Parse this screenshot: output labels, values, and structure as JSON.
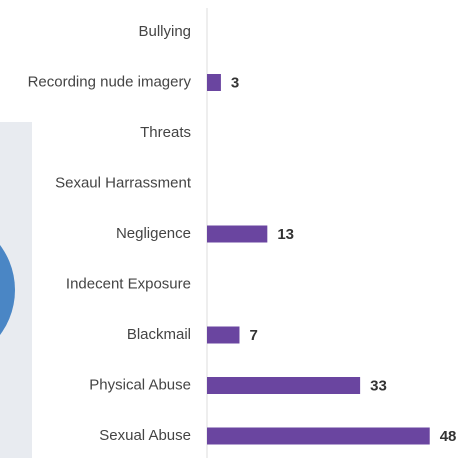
{
  "chart_data": {
    "type": "hbar",
    "categories": [
      "Bullying",
      "Recording nude imagery",
      "Threats",
      "Sexaul Harrassment",
      "Negligence",
      "Indecent Exposure",
      "Blackmail",
      "Physical Abuse",
      "Sexual Abuse"
    ],
    "values": [
      null,
      3,
      null,
      null,
      13,
      null,
      7,
      33,
      48
    ],
    "color": "#6a45a0",
    "xlim": [
      0,
      50
    ]
  }
}
